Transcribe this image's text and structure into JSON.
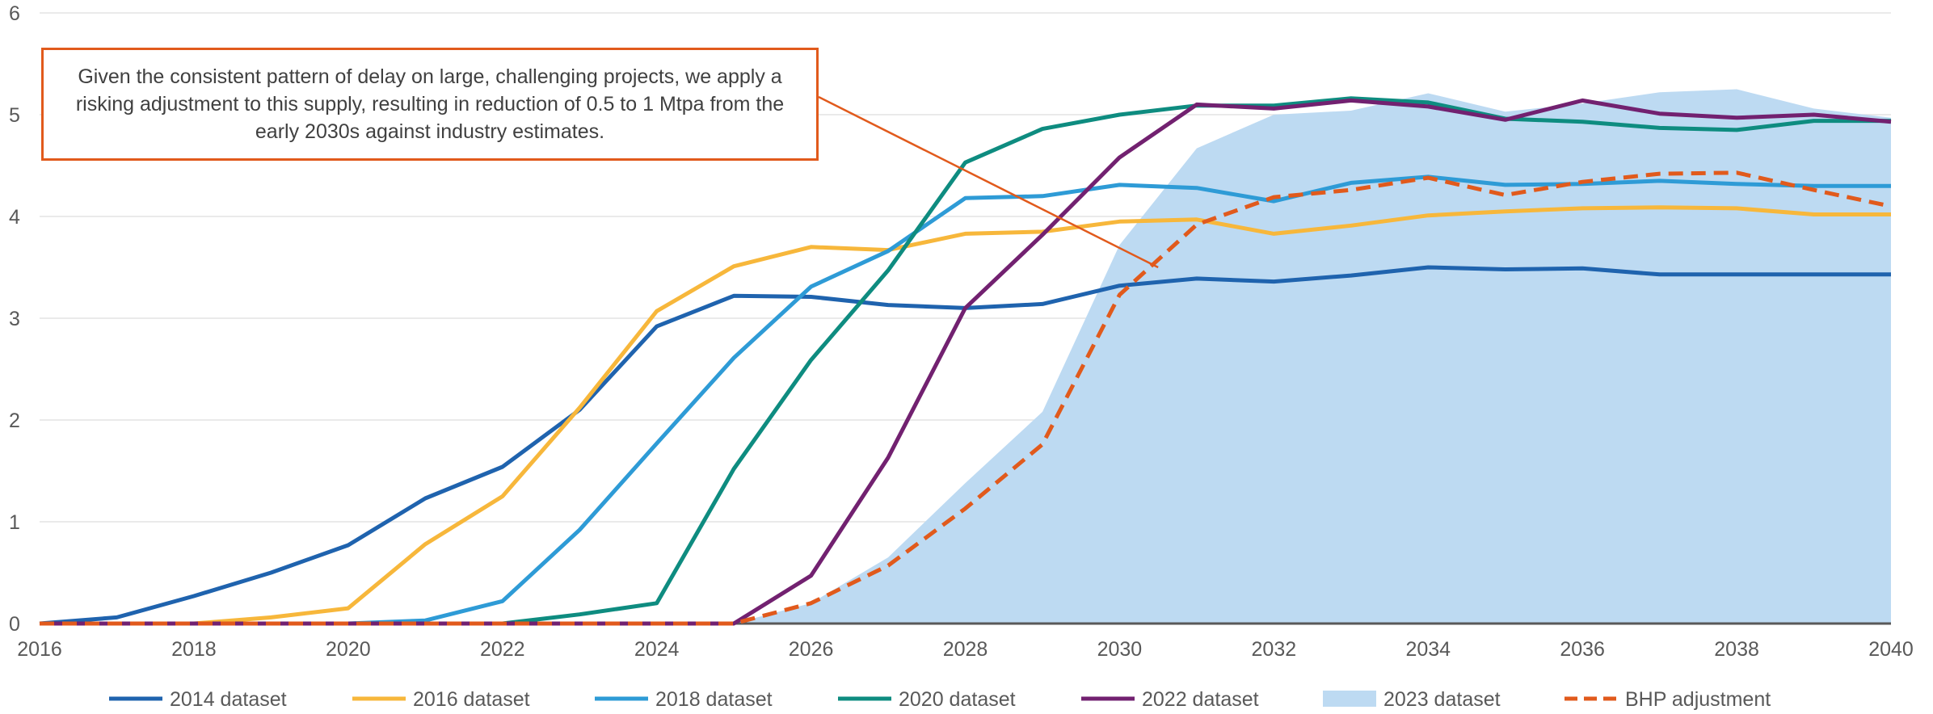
{
  "chart_data": {
    "type": "line",
    "title": "",
    "xlabel": "",
    "ylabel": "",
    "xlim": [
      2016,
      2040
    ],
    "ylim": [
      0,
      6
    ],
    "x_ticks": [
      "2016",
      "2018",
      "2020",
      "2022",
      "2024",
      "2026",
      "2028",
      "2030",
      "2032",
      "2034",
      "2036",
      "2038",
      "2040"
    ],
    "y_ticks": [
      "0",
      "1",
      "2",
      "3",
      "4",
      "5",
      "6"
    ],
    "grid": "horizontal",
    "legend_position": "bottom",
    "annotation": "Given the consistent pattern of delay on large, challenging projects, we apply a risking adjustment to this supply, resulting in reduction of 0.5 to 1 Mtpa from the early 2030s against industry estimates.",
    "annotation_target": {
      "x": 2030.5,
      "y": 3.5
    },
    "x": [
      2016,
      2017,
      2018,
      2019,
      2020,
      2021,
      2022,
      2023,
      2024,
      2025,
      2026,
      2027,
      2028,
      2029,
      2030,
      2031,
      2032,
      2033,
      2034,
      2035,
      2036,
      2037,
      2038,
      2039,
      2040
    ],
    "series": [
      {
        "name": "2014 dataset",
        "style": "line",
        "color": "#1F63AE",
        "values": [
          0,
          0.06,
          0.27,
          0.5,
          0.77,
          1.23,
          1.54,
          2.1,
          2.92,
          3.22,
          3.21,
          3.13,
          3.1,
          3.14,
          3.32,
          3.39,
          3.36,
          3.42,
          3.5,
          3.48,
          3.49,
          3.43,
          3.43,
          3.43,
          3.43
        ]
      },
      {
        "name": "2016 dataset",
        "style": "line",
        "color": "#F7B73B",
        "values": [
          0,
          0,
          0,
          0.06,
          0.15,
          0.78,
          1.25,
          2.12,
          3.07,
          3.51,
          3.7,
          3.67,
          3.83,
          3.85,
          3.95,
          3.97,
          3.83,
          3.91,
          4.01,
          4.05,
          4.08,
          4.09,
          4.08,
          4.02,
          4.02
        ]
      },
      {
        "name": "2018 dataset",
        "style": "line",
        "color": "#2E9BD6",
        "values": [
          0,
          0,
          0,
          0,
          0,
          0.03,
          0.22,
          0.92,
          1.77,
          2.61,
          3.31,
          3.66,
          4.18,
          4.2,
          4.31,
          4.28,
          4.15,
          4.33,
          4.39,
          4.31,
          4.32,
          4.35,
          4.32,
          4.3,
          4.3
        ]
      },
      {
        "name": "2020 dataset",
        "style": "line",
        "color": "#0E8C80",
        "values": [
          0,
          0,
          0,
          0,
          0,
          0,
          0,
          0.09,
          0.2,
          1.52,
          2.59,
          3.47,
          4.53,
          4.86,
          5.0,
          5.09,
          5.09,
          5.16,
          5.12,
          4.96,
          4.93,
          4.87,
          4.85,
          4.94,
          4.94
        ]
      },
      {
        "name": "2022 dataset",
        "style": "line",
        "color": "#722170",
        "values": [
          0,
          0,
          0,
          0,
          0,
          0,
          0,
          0,
          0,
          0,
          0.47,
          1.63,
          3.1,
          3.82,
          4.58,
          5.1,
          5.06,
          5.14,
          5.08,
          4.95,
          5.14,
          5.01,
          4.97,
          5.0,
          4.93
        ]
      },
      {
        "name": "2023 dataset",
        "style": "area",
        "color": "#BDDAF2",
        "values": [
          0,
          0,
          0,
          0,
          0,
          0,
          0,
          0,
          0,
          0,
          0.2,
          0.65,
          1.38,
          2.08,
          3.72,
          4.67,
          5.0,
          5.04,
          5.21,
          5.03,
          5.11,
          5.22,
          5.25,
          5.06,
          4.97
        ]
      },
      {
        "name": "BHP adjustment",
        "style": "dashed",
        "color": "#E15A1C",
        "values": [
          0,
          0,
          0,
          0,
          0,
          0,
          0,
          0,
          0,
          0,
          0.2,
          0.57,
          1.13,
          1.76,
          3.23,
          3.92,
          4.19,
          4.26,
          4.38,
          4.21,
          4.34,
          4.42,
          4.43,
          4.26,
          4.1
        ]
      }
    ]
  }
}
